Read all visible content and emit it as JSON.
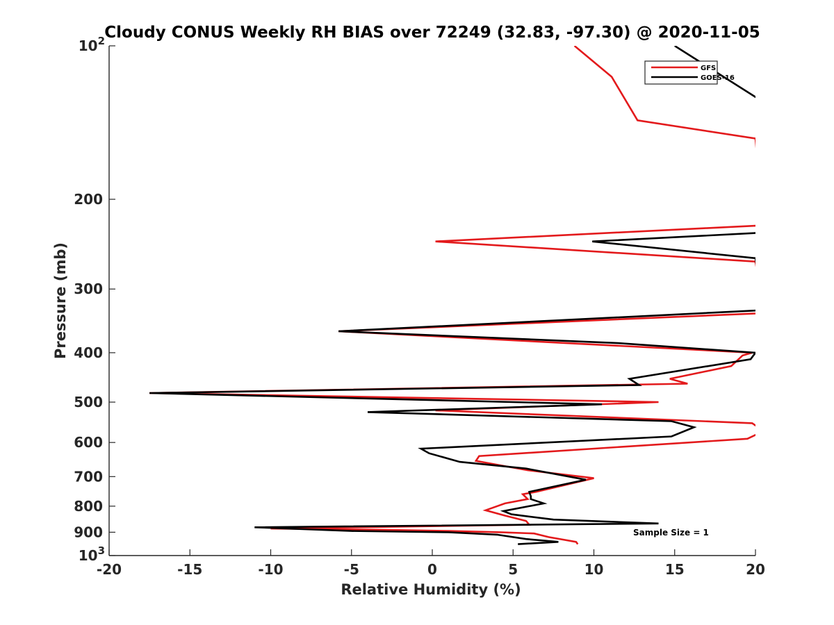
{
  "chart_data": {
    "type": "line",
    "title": "Cloudy CONUS Weekly RH BIAS over 72249 (32.83, -97.30) @ 2020-11-05",
    "xlabel": "Relative Humidity (%)",
    "ylabel": "Pressure (mb)",
    "xlim": [
      -20,
      20
    ],
    "ylim": [
      100,
      1000
    ],
    "y_scale": "log",
    "y_reversed": true,
    "x_ticks": [
      "-20",
      "-15",
      "-10",
      "-5",
      "0",
      "5",
      "10",
      "15",
      "20"
    ],
    "y_ticks": [
      {
        "base": "10",
        "exp": "2"
      },
      {
        "base": "200",
        "exp": ""
      },
      {
        "base": "300",
        "exp": ""
      },
      {
        "base": "400",
        "exp": ""
      },
      {
        "base": "500",
        "exp": ""
      },
      {
        "base": "600",
        "exp": ""
      },
      {
        "base": "700",
        "exp": ""
      },
      {
        "base": "800",
        "exp": ""
      },
      {
        "base": "900",
        "exp": ""
      },
      {
        "base": "10",
        "exp": "3"
      }
    ],
    "grid": false,
    "legend_position": "top-right",
    "annotation": "Sample Size = 1",
    "series": [
      {
        "name": "GFS",
        "color": "#e31a1c",
        "x": [
          9.0,
          8.9,
          7.2,
          6.3,
          4.2,
          1.0,
          -3.0,
          -10.0,
          6.0,
          5.8,
          4.5,
          3.3,
          4.5,
          5.9,
          5.6,
          6.4,
          10.0,
          5.9,
          4.2,
          2.7,
          2.9,
          19.5,
          20.5,
          19.8,
          0.2,
          14.0,
          -17.5,
          15.8,
          14.7,
          18.5,
          19.2,
          19.8,
          -5.8,
          20.0,
          20.5,
          20.0,
          0.2,
          16.8,
          20.5,
          20.0,
          12.7,
          11.1,
          8.8
        ],
        "y": [
          950,
          940,
          920,
          905,
          900,
          895,
          890,
          885,
          870,
          855,
          835,
          815,
          790,
          775,
          758,
          750,
          705,
          680,
          665,
          652,
          638,
          590,
          570,
          550,
          519,
          500,
          480,
          460,
          450,
          425,
          405,
          400,
          363,
          335,
          330,
          265,
          242,
          228,
          225,
          152,
          140,
          115,
          100
        ]
      },
      {
        "name": "GOES-16",
        "color": "#000000",
        "x": [
          5.3,
          7.8,
          5.8,
          4.0,
          1.0,
          -5.0,
          -11.0,
          14.0,
          7.5,
          4.9,
          4.4,
          6.9,
          6.1,
          6.1,
          6.0,
          9.5,
          5.8,
          1.7,
          -0.2,
          -0.7,
          14.8,
          16.2,
          14.8,
          -4.0,
          10.5,
          -17.5,
          12.8,
          12.2,
          19.7,
          20.0,
          11.5,
          -5.8,
          20.5,
          20.0,
          9.9,
          20.0,
          20.2,
          20.5,
          20.0,
          15.0
        ],
        "y": [
          950,
          940,
          928,
          910,
          900,
          895,
          880,
          865,
          850,
          830,
          818,
          790,
          775,
          765,
          750,
          710,
          675,
          655,
          630,
          617,
          584,
          560,
          545,
          523,
          505,
          480,
          463,
          450,
          412,
          400,
          383,
          363,
          330,
          261,
          242,
          233,
          232,
          125,
          126,
          100
        ]
      }
    ]
  }
}
